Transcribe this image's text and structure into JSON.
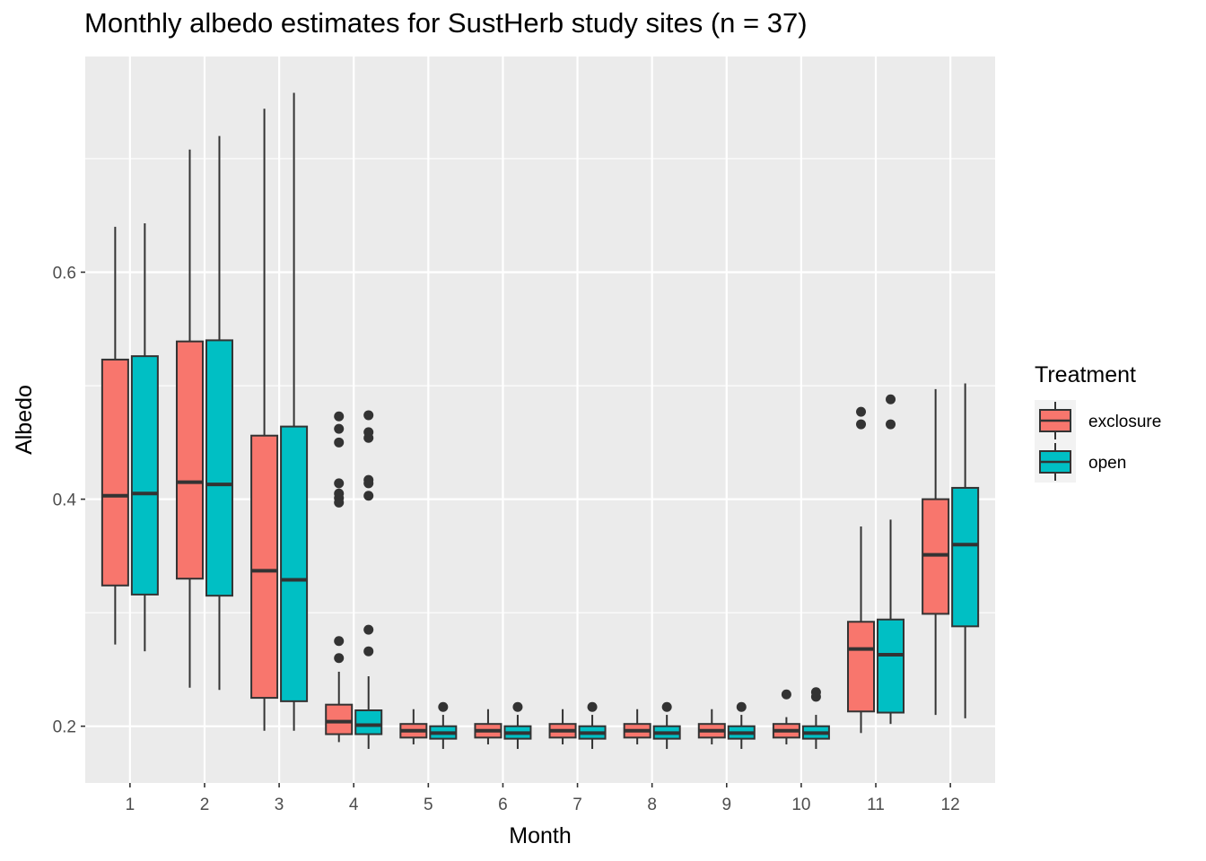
{
  "chart_data": {
    "type": "box",
    "title": "Monthly albedo estimates for SustHerb study sites (n = 37)",
    "xlabel": "Month",
    "ylabel": "Albedo",
    "categories": [
      "1",
      "2",
      "3",
      "4",
      "5",
      "6",
      "7",
      "8",
      "9",
      "10",
      "11",
      "12"
    ],
    "ylim": [
      0.15,
      0.79
    ],
    "yticks": [
      0.2,
      0.4,
      0.6
    ],
    "ytick_labels": [
      "0.2",
      "0.4",
      "0.6"
    ],
    "grid": true,
    "legend": {
      "title": "Treatment",
      "position": "right",
      "entries": [
        "exclosure",
        "open"
      ]
    },
    "colors": {
      "exclosure": "#F8766D",
      "open": "#00BFC4",
      "panel": "#EBEBEB",
      "grid": "#FFFFFF",
      "outline": "#333333"
    },
    "series": [
      {
        "name": "exclosure",
        "boxes": [
          {
            "month": "1",
            "low": 0.272,
            "q1": 0.324,
            "median": 0.403,
            "q3": 0.523,
            "high": 0.64,
            "outliers": []
          },
          {
            "month": "2",
            "low": 0.234,
            "q1": 0.33,
            "median": 0.415,
            "q3": 0.539,
            "high": 0.708,
            "outliers": []
          },
          {
            "month": "3",
            "low": 0.196,
            "q1": 0.225,
            "median": 0.337,
            "q3": 0.456,
            "high": 0.744,
            "outliers": []
          },
          {
            "month": "4",
            "low": 0.186,
            "q1": 0.193,
            "median": 0.204,
            "q3": 0.219,
            "high": 0.248,
            "outliers": [
              0.26,
              0.275,
              0.397,
              0.401,
              0.405,
              0.414,
              0.45,
              0.462,
              0.473
            ]
          },
          {
            "month": "5",
            "low": 0.184,
            "q1": 0.19,
            "median": 0.196,
            "q3": 0.202,
            "high": 0.215,
            "outliers": []
          },
          {
            "month": "6",
            "low": 0.184,
            "q1": 0.19,
            "median": 0.196,
            "q3": 0.202,
            "high": 0.215,
            "outliers": []
          },
          {
            "month": "7",
            "low": 0.184,
            "q1": 0.19,
            "median": 0.196,
            "q3": 0.202,
            "high": 0.215,
            "outliers": []
          },
          {
            "month": "8",
            "low": 0.184,
            "q1": 0.19,
            "median": 0.196,
            "q3": 0.202,
            "high": 0.215,
            "outliers": []
          },
          {
            "month": "9",
            "low": 0.184,
            "q1": 0.19,
            "median": 0.196,
            "q3": 0.202,
            "high": 0.215,
            "outliers": []
          },
          {
            "month": "10",
            "low": 0.184,
            "q1": 0.19,
            "median": 0.196,
            "q3": 0.202,
            "high": 0.208,
            "outliers": [
              0.228
            ]
          },
          {
            "month": "11",
            "low": 0.194,
            "q1": 0.213,
            "median": 0.268,
            "q3": 0.292,
            "high": 0.376,
            "outliers": [
              0.466,
              0.477
            ]
          },
          {
            "month": "12",
            "low": 0.21,
            "q1": 0.299,
            "median": 0.351,
            "q3": 0.4,
            "high": 0.497,
            "outliers": []
          }
        ]
      },
      {
        "name": "open",
        "boxes": [
          {
            "month": "1",
            "low": 0.266,
            "q1": 0.316,
            "median": 0.405,
            "q3": 0.526,
            "high": 0.643,
            "outliers": []
          },
          {
            "month": "2",
            "low": 0.232,
            "q1": 0.315,
            "median": 0.413,
            "q3": 0.54,
            "high": 0.72,
            "outliers": []
          },
          {
            "month": "3",
            "low": 0.196,
            "q1": 0.222,
            "median": 0.329,
            "q3": 0.464,
            "high": 0.758,
            "outliers": []
          },
          {
            "month": "4",
            "low": 0.18,
            "q1": 0.193,
            "median": 0.201,
            "q3": 0.214,
            "high": 0.244,
            "outliers": [
              0.266,
              0.285,
              0.403,
              0.414,
              0.417,
              0.454,
              0.459,
              0.474
            ]
          },
          {
            "month": "5",
            "low": 0.18,
            "q1": 0.189,
            "median": 0.194,
            "q3": 0.2,
            "high": 0.21,
            "outliers": [
              0.217
            ]
          },
          {
            "month": "6",
            "low": 0.18,
            "q1": 0.189,
            "median": 0.194,
            "q3": 0.2,
            "high": 0.21,
            "outliers": [
              0.217
            ]
          },
          {
            "month": "7",
            "low": 0.18,
            "q1": 0.189,
            "median": 0.194,
            "q3": 0.2,
            "high": 0.21,
            "outliers": [
              0.217
            ]
          },
          {
            "month": "8",
            "low": 0.18,
            "q1": 0.189,
            "median": 0.194,
            "q3": 0.2,
            "high": 0.21,
            "outliers": [
              0.217
            ]
          },
          {
            "month": "9",
            "low": 0.18,
            "q1": 0.189,
            "median": 0.194,
            "q3": 0.2,
            "high": 0.21,
            "outliers": [
              0.217
            ]
          },
          {
            "month": "10",
            "low": 0.18,
            "q1": 0.189,
            "median": 0.194,
            "q3": 0.2,
            "high": 0.21,
            "outliers": [
              0.226,
              0.23
            ]
          },
          {
            "month": "11",
            "low": 0.202,
            "q1": 0.212,
            "median": 0.263,
            "q3": 0.294,
            "high": 0.382,
            "outliers": [
              0.466,
              0.488
            ]
          },
          {
            "month": "12",
            "low": 0.207,
            "q1": 0.288,
            "median": 0.36,
            "q3": 0.41,
            "high": 0.502,
            "outliers": []
          }
        ]
      }
    ]
  }
}
